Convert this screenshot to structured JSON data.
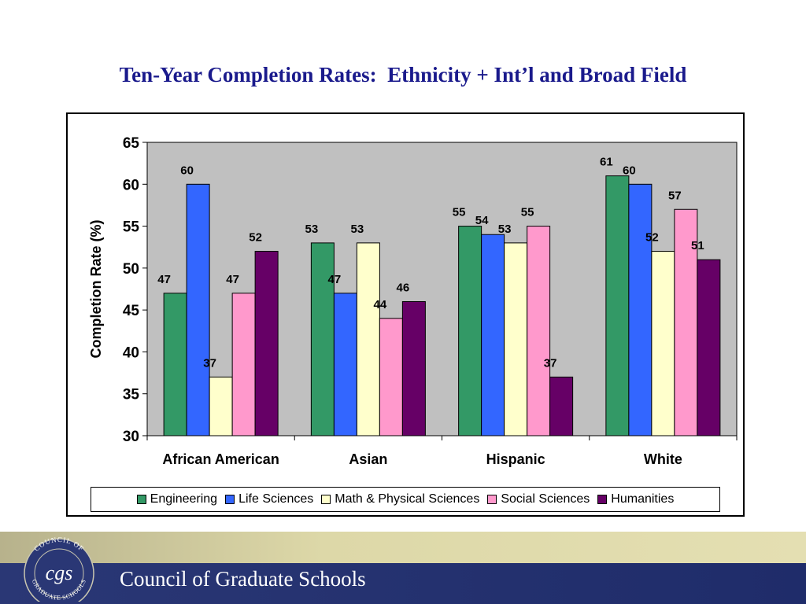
{
  "title": "Ten-Year Completion Rates:  Ethnicity + Int’l and Broad Field",
  "chart_data": {
    "type": "bar",
    "ylabel": "Completion Rate (%)",
    "xlabel": "",
    "ylim": [
      30,
      65
    ],
    "yticks": [
      30,
      35,
      40,
      45,
      50,
      55,
      60,
      65
    ],
    "categories": [
      "African American",
      "Asian",
      "Hispanic",
      "White"
    ],
    "series": [
      {
        "name": "Engineering",
        "color": "#339966",
        "values": [
          47,
          53,
          55,
          61
        ]
      },
      {
        "name": "Life Sciences",
        "color": "#3366ff",
        "values": [
          60,
          47,
          54,
          60
        ]
      },
      {
        "name": "Math & Physical Sciences",
        "color": "#ffffcc",
        "values": [
          37,
          53,
          53,
          52
        ]
      },
      {
        "name": "Social Sciences",
        "color": "#ff99cc",
        "values": [
          47,
          44,
          55,
          57
        ]
      },
      {
        "name": "Humanities",
        "color": "#660066",
        "values": [
          52,
          46,
          37,
          51
        ]
      }
    ],
    "plot_background": "#c0c0c0",
    "grid": false,
    "legend_position": "bottom"
  },
  "footer": {
    "organization": "Council of Graduate Schools",
    "seal_text_top": "COUNCIL OF",
    "seal_text_bottom": "GRADUATE SCHOOLS",
    "seal_monogram": "cgs"
  }
}
